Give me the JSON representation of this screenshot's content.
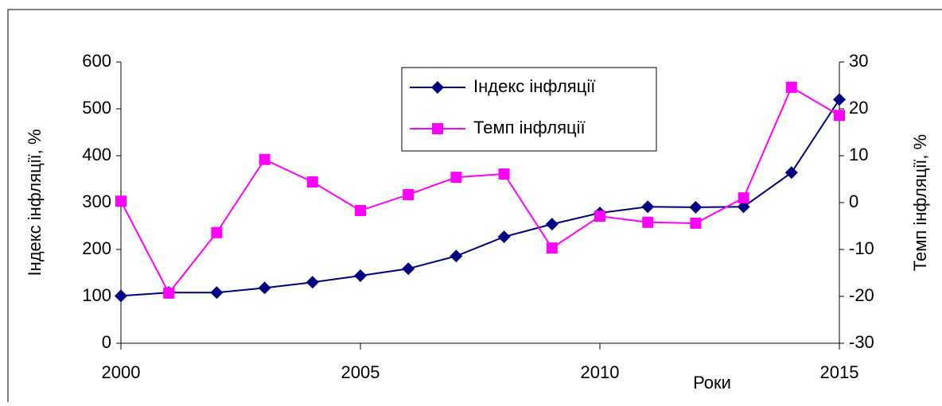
{
  "chart_data": {
    "type": "line",
    "x_label": "Роки",
    "y_label": "Індекс інфляції, %",
    "y2_label": "Темп інфляції, %",
    "x": [
      2000,
      2001,
      2002,
      2003,
      2004,
      2005,
      2006,
      2007,
      2008,
      2009,
      2010,
      2011,
      2012,
      2013,
      2014,
      2015
    ],
    "series": [
      {
        "name": "Індекс інфляції",
        "color": "#000080",
        "marker": "diamond",
        "values": [
          101,
          108,
          108,
          118,
          130,
          144,
          159,
          186,
          227,
          254,
          278,
          291,
          290,
          291,
          364,
          520
        ]
      },
      {
        "name": "Темп інфляції",
        "color": "#ff00ff",
        "marker": "square",
        "axis": "y2",
        "values": [
          0.3,
          -19.3,
          -6.4,
          9.2,
          4.4,
          -1.7,
          1.7,
          5.4,
          6.1,
          -9.7,
          -2.9,
          -4.2,
          -4.4,
          1.0,
          24.6,
          18.6
        ]
      }
    ],
    "xlim": [
      2000,
      2015
    ],
    "xticks": [
      2000,
      2005,
      2010,
      2015
    ],
    "ylim": [
      0,
      600
    ],
    "yticks": [
      0,
      100,
      200,
      300,
      400,
      500,
      600
    ],
    "y2lim": [
      -30,
      30
    ],
    "y2ticks": [
      -30,
      -20,
      -10,
      0,
      10,
      20,
      30
    ]
  }
}
